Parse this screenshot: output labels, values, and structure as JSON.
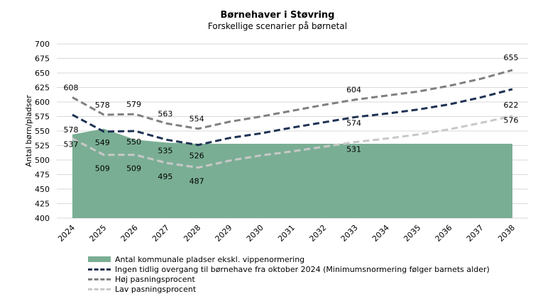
{
  "chart_data": {
    "type": "line",
    "title": "Børnehaver i Støvring",
    "subtitle": "Forskellige scenarier på børnetal",
    "xlabel": "",
    "ylabel": "Antal børn/pladser",
    "ylim": [
      400,
      700
    ],
    "yticks": [
      400,
      425,
      450,
      475,
      500,
      525,
      550,
      575,
      600,
      625,
      650,
      675,
      700
    ],
    "grid": true,
    "legend": "bottom",
    "categories": [
      "2024",
      "2025",
      "2026",
      "2027",
      "2028",
      "2029",
      "2030",
      "2031",
      "2032",
      "2033",
      "2034",
      "2035",
      "2036",
      "2037",
      "2038"
    ],
    "series": [
      {
        "name": "Antal kommunale pladser ekskl. vippenormering",
        "kind": "area",
        "color": "#7aae94",
        "values": [
          544,
          554,
          535,
          530,
          528,
          528,
          528,
          528,
          528,
          528,
          528,
          528,
          528,
          528,
          528
        ],
        "labels": [
          null,
          null,
          null,
          null,
          null,
          null,
          null,
          null,
          null,
          null,
          null,
          null,
          null,
          null,
          null
        ]
      },
      {
        "name": "Ingen tidlig overgang til børnehave fra oktober 2024 (Minimumsnormering følger barnets alder)",
        "kind": "dashed",
        "color": "#1f3254",
        "values": [
          578,
          549,
          550,
          535,
          526,
          538,
          546,
          556,
          565,
          574,
          580,
          587,
          596,
          608,
          622
        ],
        "labels": [
          "578",
          "549",
          "550",
          "535",
          "526",
          null,
          null,
          null,
          null,
          "574",
          null,
          null,
          null,
          null,
          "622"
        ]
      },
      {
        "name": "Høj pasningsprocent",
        "kind": "dashed",
        "color": "#808080",
        "values": [
          608,
          578,
          579,
          563,
          554,
          566,
          575,
          585,
          595,
          604,
          611,
          618,
          628,
          640,
          655
        ],
        "labels": [
          "608",
          "578",
          "579",
          "563",
          "554",
          null,
          null,
          null,
          null,
          "604",
          null,
          null,
          null,
          null,
          "655"
        ]
      },
      {
        "name": "Lav pasningsprocent",
        "kind": "dashed",
        "color": "#c8c8c8",
        "values": [
          537,
          509,
          509,
          495,
          487,
          499,
          508,
          515,
          523,
          531,
          537,
          544,
          553,
          564,
          576
        ],
        "labels": [
          "537",
          "509",
          "509",
          "495",
          "487",
          null,
          null,
          null,
          null,
          "531",
          null,
          null,
          null,
          null,
          "576"
        ]
      }
    ]
  }
}
